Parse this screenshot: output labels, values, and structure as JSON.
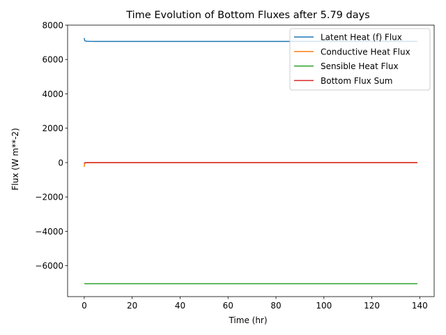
{
  "chart_data": {
    "type": "line",
    "title": "Time Evolution of Bottom Fluxes after 5.79 days",
    "xlabel": "Time (hr)",
    "ylabel": "Flux (W m**-2)",
    "xlim": [
      -6.95,
      146
    ],
    "ylim": [
      -7800,
      8000
    ],
    "xticks": [
      0,
      20,
      40,
      60,
      80,
      100,
      120,
      140
    ],
    "yticks": [
      -6000,
      -4000,
      -2000,
      0,
      2000,
      4000,
      6000,
      8000
    ],
    "xtick_labels": [
      "0",
      "20",
      "40",
      "60",
      "80",
      "100",
      "120",
      "140"
    ],
    "ytick_labels": [
      "−6000",
      "−4000",
      "−2000",
      "0",
      "2000",
      "4000",
      "6000",
      "8000"
    ],
    "grid": false,
    "legend_position": "top-right",
    "series": [
      {
        "name": "Latent Heat (f) Flux",
        "color": "#1f77b4",
        "x": [
          0,
          0.05,
          0.1,
          0.2,
          0.4,
          0.7,
          1,
          2,
          5,
          10,
          20,
          40,
          60,
          80,
          100,
          120,
          139
        ],
        "y": [
          7250,
          7200,
          7150,
          7100,
          7080,
          7070,
          7060,
          7055,
          7050,
          7050,
          7050,
          7050,
          7050,
          7050,
          7050,
          7050,
          7050
        ]
      },
      {
        "name": "Conductive Heat Flux",
        "color": "#ff7f0e",
        "x": [
          0,
          0.05,
          0.1,
          0.2,
          0.4,
          0.7,
          1,
          2,
          5,
          10,
          20,
          40,
          60,
          80,
          100,
          120,
          139
        ],
        "y": [
          -250,
          -150,
          -80,
          -40,
          -20,
          -10,
          -5,
          0,
          0,
          0,
          0,
          0,
          0,
          0,
          0,
          0,
          0
        ]
      },
      {
        "name": "Sensible Heat Flux",
        "color": "#2ca02c",
        "x": [
          0,
          0.05,
          0.1,
          0.2,
          0.4,
          0.7,
          1,
          2,
          5,
          10,
          20,
          40,
          60,
          80,
          100,
          120,
          139
        ],
        "y": [
          -7050,
          -7050,
          -7050,
          -7050,
          -7050,
          -7050,
          -7050,
          -7050,
          -7050,
          -7050,
          -7050,
          -7050,
          -7050,
          -7050,
          -7050,
          -7050,
          -7050
        ]
      },
      {
        "name": "Bottom Flux Sum",
        "color": "#d62728",
        "x": [
          0,
          0.05,
          0.1,
          0.2,
          0.4,
          0.7,
          1,
          2,
          5,
          10,
          20,
          40,
          60,
          80,
          100,
          120,
          139
        ],
        "y": [
          -50,
          -30,
          -20,
          -10,
          -5,
          0,
          0,
          0,
          0,
          0,
          0,
          0,
          0,
          0,
          0,
          0,
          0
        ]
      }
    ]
  }
}
